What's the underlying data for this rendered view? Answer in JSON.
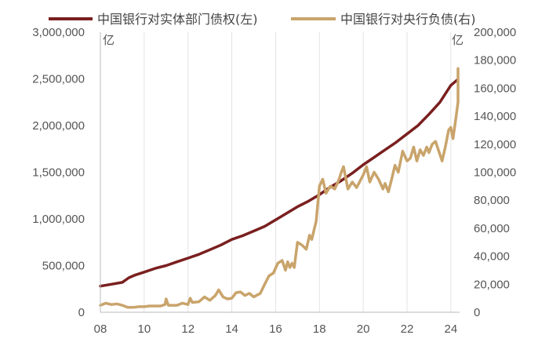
{
  "chart_data": {
    "type": "line",
    "title": "",
    "legend": {
      "position": "top",
      "entries": [
        {
          "label": "中国银行对实体部门债权(左)",
          "color": "#7a1f1f"
        },
        {
          "label": "中国银行对央行负债(右)",
          "color": "#c9a46b"
        }
      ]
    },
    "x_axis": {
      "ticks": [
        "08",
        "10",
        "12",
        "14",
        "16",
        "18",
        "20",
        "22",
        "24"
      ],
      "range": [
        2008,
        2024.4
      ],
      "vertical_grid": true
    },
    "y_left": {
      "unit_label": "亿",
      "range": [
        0,
        3000000
      ],
      "ticks": [
        "0",
        "500,000",
        "1,000,000",
        "1,500,000",
        "2,000,000",
        "2,500,000",
        "3,000,000"
      ]
    },
    "y_right": {
      "unit_label": "亿",
      "range": [
        0,
        200000
      ],
      "ticks": [
        "0",
        "20,000",
        "40,000",
        "60,000",
        "80,000",
        "100,000",
        "120,000",
        "140,000",
        "160,000",
        "180,000",
        "200,000"
      ]
    },
    "series": [
      {
        "name": "中国银行对实体部门债权(左)",
        "axis": "left",
        "color": "#7a1f1f",
        "points": [
          [
            2008.0,
            280000
          ],
          [
            2008.5,
            300000
          ],
          [
            2009.0,
            320000
          ],
          [
            2009.3,
            370000
          ],
          [
            2009.6,
            400000
          ],
          [
            2010.0,
            430000
          ],
          [
            2010.5,
            470000
          ],
          [
            2011.0,
            500000
          ],
          [
            2011.5,
            540000
          ],
          [
            2012.0,
            580000
          ],
          [
            2012.5,
            620000
          ],
          [
            2013.0,
            670000
          ],
          [
            2013.5,
            720000
          ],
          [
            2014.0,
            780000
          ],
          [
            2014.5,
            820000
          ],
          [
            2015.0,
            870000
          ],
          [
            2015.5,
            920000
          ],
          [
            2016.0,
            990000
          ],
          [
            2016.5,
            1060000
          ],
          [
            2017.0,
            1130000
          ],
          [
            2017.5,
            1190000
          ],
          [
            2018.0,
            1260000
          ],
          [
            2018.5,
            1340000
          ],
          [
            2019.0,
            1410000
          ],
          [
            2019.5,
            1490000
          ],
          [
            2020.0,
            1580000
          ],
          [
            2020.5,
            1660000
          ],
          [
            2021.0,
            1740000
          ],
          [
            2021.5,
            1820000
          ],
          [
            2022.0,
            1910000
          ],
          [
            2022.5,
            2000000
          ],
          [
            2023.0,
            2120000
          ],
          [
            2023.5,
            2250000
          ],
          [
            2024.0,
            2430000
          ],
          [
            2024.3,
            2490000
          ]
        ]
      },
      {
        "name": "中国银行对央行负债(右)",
        "axis": "right",
        "color": "#c9a46b",
        "points": [
          [
            2008.0,
            5000
          ],
          [
            2008.25,
            6500
          ],
          [
            2008.5,
            5500
          ],
          [
            2008.75,
            6000
          ],
          [
            2009.0,
            5000
          ],
          [
            2009.25,
            3500
          ],
          [
            2009.5,
            3500
          ],
          [
            2009.75,
            4000
          ],
          [
            2010.0,
            4000
          ],
          [
            2010.25,
            4500
          ],
          [
            2010.5,
            4500
          ],
          [
            2010.75,
            4500
          ],
          [
            2010.95,
            5500
          ],
          [
            2011.0,
            9500
          ],
          [
            2011.1,
            5000
          ],
          [
            2011.5,
            5000
          ],
          [
            2011.75,
            6500
          ],
          [
            2012.0,
            5500
          ],
          [
            2012.1,
            10000
          ],
          [
            2012.2,
            7000
          ],
          [
            2012.5,
            7500
          ],
          [
            2012.75,
            11000
          ],
          [
            2013.0,
            8500
          ],
          [
            2013.25,
            12000
          ],
          [
            2013.4,
            16000
          ],
          [
            2013.6,
            11000
          ],
          [
            2013.8,
            9500
          ],
          [
            2014.0,
            10000
          ],
          [
            2014.2,
            14000
          ],
          [
            2014.4,
            14500
          ],
          [
            2014.6,
            12000
          ],
          [
            2014.8,
            13500
          ],
          [
            2015.0,
            11000
          ],
          [
            2015.3,
            13500
          ],
          [
            2015.5,
            20000
          ],
          [
            2015.7,
            26000
          ],
          [
            2015.9,
            28000
          ],
          [
            2016.1,
            35000
          ],
          [
            2016.3,
            37000
          ],
          [
            2016.45,
            30000
          ],
          [
            2016.55,
            36000
          ],
          [
            2016.65,
            32000
          ],
          [
            2016.75,
            35000
          ],
          [
            2016.85,
            32000
          ],
          [
            2017.0,
            50000
          ],
          [
            2017.2,
            48000
          ],
          [
            2017.4,
            45000
          ],
          [
            2017.55,
            55000
          ],
          [
            2017.65,
            52000
          ],
          [
            2017.85,
            65000
          ],
          [
            2018.0,
            90000
          ],
          [
            2018.15,
            95000
          ],
          [
            2018.3,
            85000
          ],
          [
            2018.5,
            90000
          ],
          [
            2018.7,
            88000
          ],
          [
            2018.9,
            95000
          ],
          [
            2019.0,
            100000
          ],
          [
            2019.1,
            104000
          ],
          [
            2019.3,
            88000
          ],
          [
            2019.5,
            93000
          ],
          [
            2019.7,
            89000
          ],
          [
            2019.9,
            95000
          ],
          [
            2020.0,
            98000
          ],
          [
            2020.15,
            104000
          ],
          [
            2020.3,
            93000
          ],
          [
            2020.5,
            100000
          ],
          [
            2020.7,
            95000
          ],
          [
            2020.9,
            88000
          ],
          [
            2021.0,
            92000
          ],
          [
            2021.15,
            86000
          ],
          [
            2021.3,
            95000
          ],
          [
            2021.45,
            105000
          ],
          [
            2021.6,
            100000
          ],
          [
            2021.8,
            115000
          ],
          [
            2022.0,
            108000
          ],
          [
            2022.15,
            110000
          ],
          [
            2022.3,
            118000
          ],
          [
            2022.45,
            108000
          ],
          [
            2022.6,
            116000
          ],
          [
            2022.75,
            112000
          ],
          [
            2022.9,
            118000
          ],
          [
            2023.0,
            114000
          ],
          [
            2023.15,
            120000
          ],
          [
            2023.3,
            122000
          ],
          [
            2023.45,
            115000
          ],
          [
            2023.6,
            108000
          ],
          [
            2023.75,
            118000
          ],
          [
            2023.9,
            130000
          ],
          [
            2024.0,
            132000
          ],
          [
            2024.1,
            124000
          ],
          [
            2024.2,
            135000
          ],
          [
            2024.35,
            150000
          ],
          [
            2024.45,
            160000
          ],
          [
            2024.55,
            172000
          ],
          [
            2024.7,
            174000
          ],
          [
            2024.85,
            168000
          ],
          [
            2024.95,
            162000
          ],
          [
            2025.05,
            165000
          ]
        ]
      }
    ]
  }
}
